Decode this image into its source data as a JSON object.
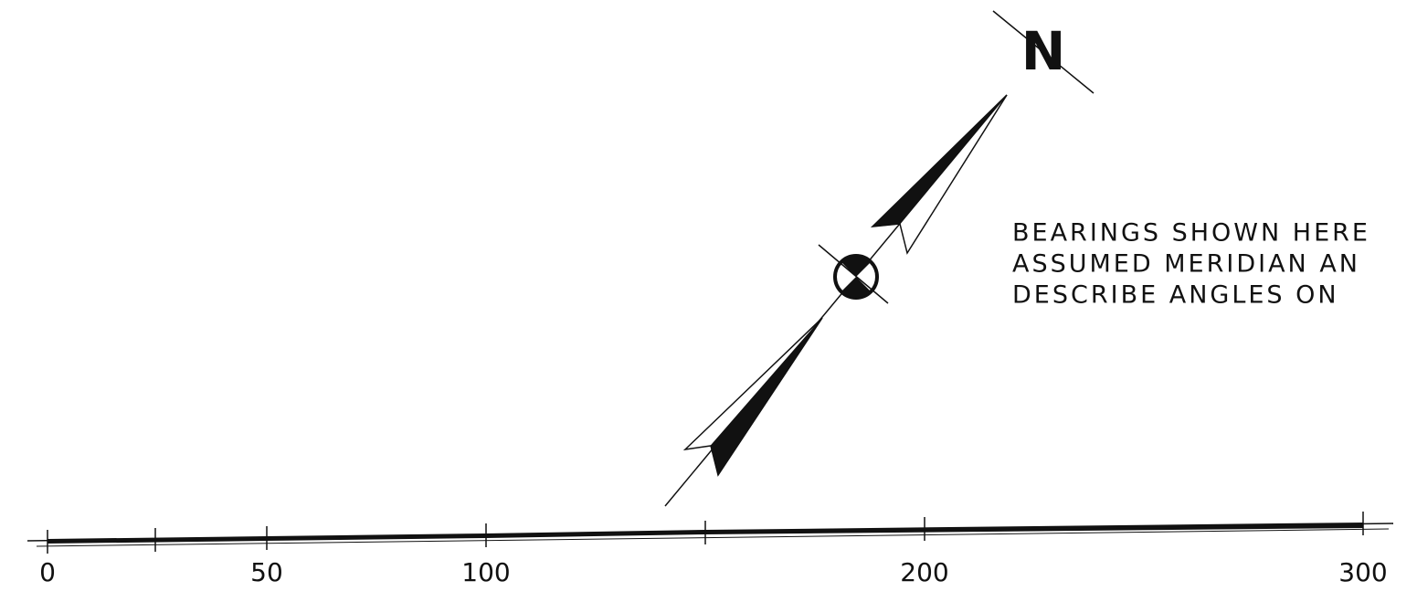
{
  "north_arrow": {
    "label": "N"
  },
  "note": {
    "lines": [
      "BEARINGS SHOWN HERE",
      "ASSUMED MERIDIAN AN",
      "DESCRIBE ANGLES ON"
    ]
  },
  "scale": {
    "labels": [
      0,
      50,
      100,
      200,
      300
    ]
  }
}
